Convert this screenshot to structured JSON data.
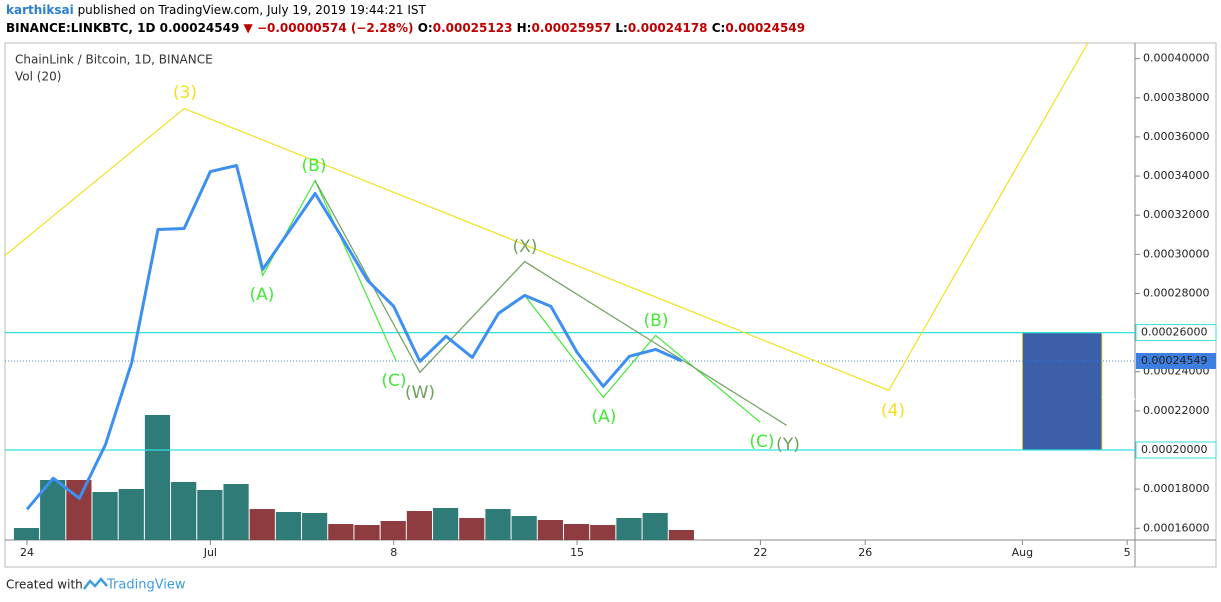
{
  "header": {
    "author": "karthiksai",
    "published": "published on TradingView.com, July 19, 2019 19:44:21 IST",
    "symbol": "BINANCE:LINKBTC, 1D",
    "last": "0.00024549",
    "change": "▼ −0.00000574 (−2.28%)",
    "o_label": "O:",
    "o": "0.00025123",
    "h_label": "H:",
    "h": "0.00025957",
    "l_label": "L:",
    "l": "0.00024178",
    "c_label": "C:",
    "c": "0.00024549"
  },
  "footer": {
    "created": "Created with",
    "brand": "TradingView"
  },
  "chart_data": {
    "type": "line",
    "title": "ChainLink / Bitcoin, 1D, BINANCE",
    "subtitle": "Vol (20)",
    "xlim": [
      -0.84,
      42.3
    ],
    "ylim": [
      0.000154,
      0.000408
    ],
    "xticks": [
      {
        "value": 0,
        "label": "24"
      },
      {
        "value": 7,
        "label": "Jul"
      },
      {
        "value": 14,
        "label": "8"
      },
      {
        "value": 21,
        "label": "15"
      },
      {
        "value": 28,
        "label": "22"
      },
      {
        "value": 32,
        "label": "26"
      },
      {
        "value": 38,
        "label": "Aug"
      },
      {
        "value": 42,
        "label": "5"
      }
    ],
    "yticks": [
      {
        "value": 0.00016,
        "label": "0.00016000"
      },
      {
        "value": 0.00018,
        "label": "0.00018000"
      },
      {
        "value": 0.00022,
        "label": "0.00022000"
      },
      {
        "value": 0.00024,
        "label": "0.00024000"
      },
      {
        "value": 0.00028,
        "label": "0.00028000"
      },
      {
        "value": 0.0003,
        "label": "0.00030000"
      },
      {
        "value": 0.00032,
        "label": "0.00032000"
      },
      {
        "value": 0.00034,
        "label": "0.00034000"
      },
      {
        "value": 0.00036,
        "label": "0.00036000"
      },
      {
        "value": 0.00038,
        "label": "0.00038000"
      },
      {
        "value": 0.0004,
        "label": "0.00040000"
      }
    ],
    "x": [
      0,
      1,
      2,
      3,
      4,
      5,
      6,
      7,
      8,
      9,
      10,
      11,
      12,
      13,
      14,
      15,
      16,
      17,
      18,
      19,
      20,
      21,
      22,
      23,
      24,
      25
    ],
    "price": {
      "color": "#3d8ff2",
      "values": [
        0.0001697,
        0.0001856,
        0.0001753,
        0.0002029,
        0.0002448,
        0.0003127,
        0.0003132,
        0.0003423,
        0.0003454,
        0.0002923,
        0.0003117,
        0.0003311,
        0.0003091,
        0.0002867,
        0.0002734,
        0.0002453,
        0.0002581,
        0.0002473,
        0.0002698,
        0.000279,
        0.0002734,
        0.0002499,
        0.0002325,
        0.0002479,
        0.0002514,
        0.00024549
      ]
    },
    "volume": {
      "y2lim": [
        0,
        497
      ],
      "values": [
        12,
        60,
        60,
        48,
        51,
        125,
        58,
        50,
        56,
        31,
        28,
        27,
        16,
        15,
        19,
        29,
        32,
        22,
        31,
        24,
        20,
        16,
        15,
        22,
        27,
        10
      ],
      "colors": [
        "#2f7b78",
        "#2f7b78",
        "#8e3c3f",
        "#2f7b78",
        "#2f7b78",
        "#2f7b78",
        "#2f7b78",
        "#2f7b78",
        "#2f7b78",
        "#8e3c3f",
        "#2f7b78",
        "#2f7b78",
        "#8e3c3f",
        "#8e3c3f",
        "#8e3c3f",
        "#8e3c3f",
        "#2f7b78",
        "#8e3c3f",
        "#2f7b78",
        "#2f7b78",
        "#8e3c3f",
        "#8e3c3f",
        "#8e3c3f",
        "#2f7b78",
        "#2f7b78",
        "#8e3c3f"
      ]
    },
    "levels": [
      {
        "value": 0.00026,
        "label": "0.00026000",
        "color": "#33e0e0"
      },
      {
        "value": 0.0002,
        "label": "0.00020000",
        "color": "#33e0e0"
      }
    ],
    "last_price": {
      "value": 0.00024549,
      "label": "0.00024549",
      "color": "#3d7fe0"
    },
    "box": {
      "x": [
        38,
        41.04
      ],
      "y": [
        0.0002,
        0.00026
      ],
      "color": "#3b5fa8"
    },
    "waves": [
      {
        "color": "#f0e020",
        "x": [
          -0.84,
          6,
          32.9,
          40.5
        ],
        "values": [
          0.0002994,
          0.0003745,
          0.0002305,
          0.000408
        ]
      },
      {
        "color": "#44e838",
        "x": [
          8,
          9,
          11,
          14.1
        ],
        "values": [
          0.0003454,
          0.0002892,
          0.0003377,
          0.0002453
        ]
      },
      {
        "color": "#44e838",
        "x": [
          19,
          22,
          24,
          28
        ],
        "values": [
          0.000279,
          0.0002269,
          0.0002586,
          0.0002141
        ]
      },
      {
        "color": "#6f9f5e",
        "x": [
          11,
          15,
          19,
          29
        ],
        "values": [
          0.0003377,
          0.0002397,
          0.0002963,
          0.0002126
        ]
      }
    ],
    "annotations": [
      "(3)",
      "(4)",
      "(A)",
      "(B)",
      "(C)",
      "(W)",
      "(X)",
      "(A)",
      "(B)",
      "(C)",
      "(Y)"
    ]
  }
}
